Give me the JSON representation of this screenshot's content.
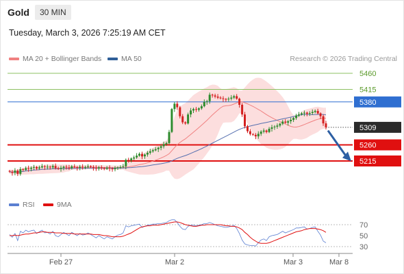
{
  "header": {
    "title": "Gold",
    "timeframe": "30 MIN",
    "datetime": "Tuesday, March 3, 2026 7:25:19 AM CET"
  },
  "legend_main": [
    {
      "label": "MA 20 + Bollinger Bands",
      "color": "#f08080"
    },
    {
      "label": "MA 50",
      "color": "#2f5f98"
    }
  ],
  "legend_rsi": [
    {
      "label": "RSI",
      "color": "#5b7fd1"
    },
    {
      "label": "9MA",
      "color": "#e01010"
    }
  ],
  "credit": "Research © 2026 Trading Central",
  "chart_data": [
    {
      "type": "candlestick",
      "x_ticks": [
        "Feb 27",
        "Mar 2",
        "Mar 3",
        "Mar 8"
      ],
      "levels": [
        {
          "value": 5460,
          "label": "5460",
          "kind": "target",
          "color": "#8cc060"
        },
        {
          "value": 5415,
          "label": "5415",
          "kind": "target",
          "color": "#8cc060"
        },
        {
          "value": 5380,
          "label": "5380",
          "kind": "resistance",
          "color": "#2f6fd1"
        },
        {
          "value": 5309,
          "label": "5309",
          "kind": "last-price",
          "color": "#2b2b2b"
        },
        {
          "value": 5260,
          "label": "5260",
          "kind": "support",
          "color": "#e01010"
        },
        {
          "value": 5215,
          "label": "5215",
          "kind": "support",
          "color": "#e01010"
        }
      ],
      "close": [
        5185,
        5182,
        5188,
        5179,
        5192,
        5190,
        5195,
        5193,
        5196,
        5198,
        5194,
        5197,
        5200,
        5198,
        5199,
        5197,
        5201,
        5195,
        5193,
        5196,
        5199,
        5197,
        5195,
        5200,
        5198,
        5196,
        5199,
        5197,
        5198,
        5200,
        5198,
        5196,
        5194,
        5197,
        5195,
        5193,
        5196,
        5194,
        5192,
        5195,
        5197,
        5198,
        5200,
        5218,
        5217,
        5222,
        5225,
        5230,
        5235,
        5228,
        5233,
        5238,
        5242,
        5245,
        5248,
        5252,
        5256,
        5262,
        5265,
        5296,
        5360,
        5375,
        5365,
        5340,
        5323,
        5320,
        5345,
        5356,
        5360,
        5358,
        5362,
        5368,
        5380,
        5382,
        5400,
        5398,
        5395,
        5392,
        5390,
        5388,
        5387,
        5389,
        5392,
        5396,
        5389,
        5372,
        5345,
        5312,
        5298,
        5290,
        5288,
        5284,
        5291,
        5297,
        5300,
        5296,
        5305,
        5309,
        5311,
        5314,
        5319,
        5325,
        5322,
        5326,
        5330,
        5335,
        5342,
        5345,
        5348,
        5350,
        5347,
        5349,
        5352,
        5355,
        5348,
        5340,
        5320,
        5309
      ]
    },
    {
      "type": "line",
      "title": "RSI",
      "y_ticks": [
        70,
        50,
        30
      ],
      "series": [
        {
          "name": "RSI",
          "color": "#5b7fd1",
          "values": [
            52,
            47,
            54,
            41,
            58,
            55,
            60,
            57,
            59,
            60,
            54,
            57,
            60,
            55,
            56,
            53,
            58,
            50,
            48,
            52,
            56,
            53,
            50,
            56,
            53,
            50,
            54,
            51,
            52,
            55,
            52,
            49,
            46,
            50,
            47,
            44,
            48,
            46,
            44,
            48,
            51,
            52,
            55,
            68,
            66,
            68,
            69,
            70,
            71,
            65,
            67,
            69,
            70,
            71,
            71,
            72,
            72,
            73,
            74,
            77,
            79,
            79,
            74,
            67,
            62,
            61,
            67,
            69,
            69,
            68,
            69,
            70,
            72,
            72,
            74,
            72,
            70,
            68,
            67,
            66,
            65,
            66,
            67,
            69,
            63,
            54,
            42,
            35,
            33,
            32,
            32,
            31,
            37,
            42,
            44,
            41,
            48,
            50,
            51,
            52,
            55,
            58,
            55,
            57,
            59,
            61,
            64,
            64,
            65,
            66,
            62,
            63,
            65,
            66,
            58,
            51,
            40,
            37
          ]
        },
        {
          "name": "9MA",
          "color": "#e01010",
          "values": [
            50,
            50,
            51,
            50,
            51,
            52,
            53,
            53,
            54,
            55,
            55,
            56,
            57,
            57,
            56,
            56,
            56,
            55,
            55,
            55,
            54,
            54,
            54,
            54,
            53,
            53,
            53,
            53,
            53,
            53,
            53,
            52,
            52,
            52,
            51,
            50,
            50,
            49,
            48,
            48,
            48,
            48,
            49,
            51,
            53,
            55,
            58,
            61,
            64,
            66,
            67,
            68,
            68,
            69,
            69,
            69,
            70,
            71,
            72,
            73,
            74,
            75,
            75,
            74,
            72,
            70,
            69,
            68,
            67,
            67,
            68,
            69,
            69,
            70,
            70,
            70,
            70,
            70,
            70,
            69,
            68,
            68,
            67,
            67,
            66,
            64,
            61,
            56,
            52,
            47,
            43,
            40,
            37,
            36,
            36,
            36,
            37,
            39,
            41,
            43,
            45,
            47,
            49,
            51,
            53,
            55,
            57,
            58,
            59,
            61,
            62,
            63,
            63,
            63,
            62,
            61,
            59,
            56
          ]
        }
      ]
    }
  ]
}
